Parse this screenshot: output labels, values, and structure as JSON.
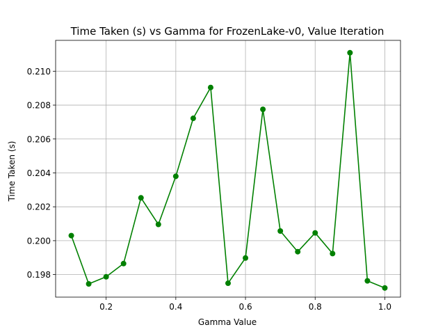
{
  "chart_data": {
    "type": "line",
    "title": "Time Taken (s) vs Gamma for FrozenLake-v0, Value Iteration",
    "xlabel": "Gamma Value",
    "ylabel": "Time Taken (s)",
    "x": [
      0.1,
      0.15,
      0.2,
      0.25,
      0.3,
      0.35,
      0.4,
      0.45,
      0.5,
      0.55,
      0.6,
      0.65,
      0.7,
      0.75,
      0.8,
      0.85,
      0.9,
      0.95,
      1.0
    ],
    "series": [
      {
        "values": [
          0.2003,
          0.19745,
          0.19787,
          0.19865,
          0.20253,
          0.20096,
          0.2038,
          0.20722,
          0.20904,
          0.19749,
          0.19898,
          0.20775,
          0.20057,
          0.19935,
          0.20046,
          0.19924,
          0.21109,
          0.19763,
          0.19721
        ],
        "color": "#008000"
      }
    ],
    "xlim": [
      0.055,
      1.045
    ],
    "ylim": [
      0.19667,
      0.21182
    ],
    "xticks": [
      "0.2",
      "0.4",
      "0.6",
      "0.8",
      "1.0"
    ],
    "xtick_values": [
      0.2,
      0.4,
      0.6,
      0.8,
      1.0
    ],
    "yticks": [
      "0.198",
      "0.200",
      "0.202",
      "0.204",
      "0.206",
      "0.208",
      "0.210"
    ],
    "ytick_values": [
      0.198,
      0.2,
      0.202,
      0.204,
      0.206,
      0.208,
      0.21
    ],
    "grid": true
  }
}
